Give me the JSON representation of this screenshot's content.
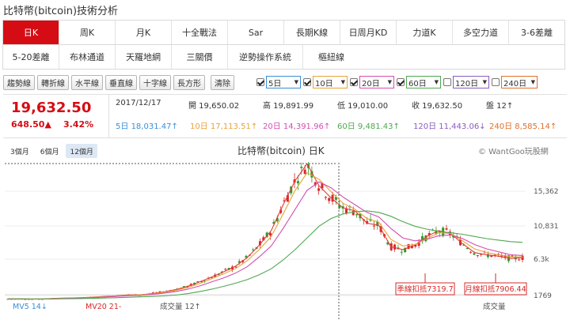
{
  "page": {
    "title": "比特幣(bitcoin)技術分析"
  },
  "tabs": {
    "row1": [
      "日K",
      "周K",
      "月K",
      "十全戰法",
      "Sar",
      "長期K線",
      "日周月KD",
      "力道K",
      "多空力道",
      "3-6差離"
    ],
    "row2": [
      "5-20差離",
      "布林通道",
      "天羅地網",
      "三關價",
      "逆勢操作系統",
      "樞紐線"
    ],
    "active": "日K"
  },
  "toolbar": {
    "buttons": [
      "趨勢線",
      "轉折線",
      "水平線",
      "垂直線",
      "十字線",
      "長方形"
    ],
    "clear": "清除",
    "ma_selects": [
      {
        "label": "5日",
        "checked": true,
        "color": "#3a8fd6"
      },
      {
        "label": "10日",
        "checked": true,
        "color": "#e8a23a"
      },
      {
        "label": "20日",
        "checked": true,
        "color": "#d44db0"
      },
      {
        "label": "60日",
        "checked": true,
        "color": "#4fa84f"
      },
      {
        "label": "120日",
        "checked": false,
        "color": "#8a5cc0"
      },
      {
        "label": "240日",
        "checked": false,
        "color": "#e0702a"
      }
    ]
  },
  "quote": {
    "price": "19,632.50",
    "change": "648.50▲",
    "pct": "3.42%",
    "date": "2017/12/17",
    "open": "開 19,650.02",
    "high": "高 19,891.99",
    "low": "低 19,010.00",
    "close": "收 19,632.50",
    "streak": "盤 12↑",
    "ma": [
      {
        "label": "5日",
        "value": "18,031.47↑",
        "color": "#3a8fd6"
      },
      {
        "label": "10日",
        "value": "17,113.51↑",
        "color": "#e8a23a"
      },
      {
        "label": "20日",
        "value": "14,391.96↑",
        "color": "#d44db0"
      },
      {
        "label": "60日",
        "value": "9,481.43↑",
        "color": "#4fa84f"
      },
      {
        "label": "120日",
        "value": "11,443.06↓",
        "color": "#8a5cc0"
      },
      {
        "label": "240日",
        "value": "8,585.14↑",
        "color": "#e0702a"
      }
    ]
  },
  "chart": {
    "range_tabs": [
      "3個月",
      "6個月",
      "12個月"
    ],
    "active_range": "12個月",
    "title": "比特幣(bitcoin) 日K",
    "credit": "© WantGoo玩股網",
    "y_ticks": [
      "15,362",
      "10,831",
      "6.3k",
      "1769"
    ],
    "annotations": [
      "季線扣抵7319.7",
      "月線扣抵7906.44"
    ],
    "volume_labels": [
      "MV5 14↓",
      "MV20 21-",
      "成交量 12↑",
      "成交量"
    ]
  },
  "chart_data": {
    "type": "candlestick",
    "title": "比特幣(bitcoin) 日K",
    "y_ticks": [
      1769,
      6300,
      10831,
      15362
    ],
    "ma_lines": [
      {
        "name": "5日",
        "color": "#e23b3b",
        "values": [
          1000,
          1000,
          980,
          1000,
          1150,
          1200,
          1280,
          1380,
          1550,
          1700,
          1850,
          1850,
          2000,
          2200,
          2500,
          2900,
          3450,
          4050,
          4700,
          5400,
          6500,
          8200,
          10200,
          13600,
          17000,
          19600,
          16200,
          14500,
          13200,
          12800,
          11200,
          10900,
          8000,
          7600,
          8200,
          9400,
          10200,
          9800,
          8400,
          7200,
          6900,
          6700,
          6400,
          6500
        ]
      },
      {
        "name": "10日",
        "color": "#e8a23a",
        "values": [
          1000,
          1000,
          985,
          990,
          1100,
          1180,
          1250,
          1350,
          1500,
          1650,
          1800,
          1860,
          1960,
          2150,
          2400,
          2750,
          3250,
          3850,
          4450,
          5100,
          6100,
          7600,
          9400,
          12400,
          15500,
          18200,
          17200,
          15300,
          13800,
          13000,
          11800,
          11300,
          9000,
          8100,
          8300,
          9100,
          9900,
          9800,
          8800,
          7700,
          7200,
          6900,
          6600,
          6600
        ]
      },
      {
        "name": "20日",
        "color": "#d44db0",
        "values": [
          1000,
          1000,
          990,
          990,
          1050,
          1130,
          1200,
          1300,
          1420,
          1560,
          1700,
          1790,
          1900,
          2050,
          2250,
          2550,
          2950,
          3450,
          3950,
          4550,
          5350,
          6600,
          8100,
          10500,
          13000,
          15500,
          16800,
          15900,
          14600,
          13600,
          12600,
          12000,
          10500,
          9200,
          8800,
          9000,
          9500,
          9600,
          9100,
          8300,
          7700,
          7300,
          6900,
          6800
        ]
      },
      {
        "name": "60日",
        "color": "#4fa84f",
        "values": [
          1000,
          1000,
          995,
          990,
          1010,
          1040,
          1080,
          1130,
          1200,
          1280,
          1370,
          1460,
          1560,
          1680,
          1820,
          2000,
          2250,
          2550,
          2900,
          3300,
          3750,
          4350,
          5100,
          6200,
          7600,
          9200,
          10800,
          11800,
          12400,
          12700,
          12800,
          12600,
          12100,
          11400,
          10800,
          10400,
          10100,
          9900,
          9700,
          9400,
          9100,
          8900,
          8700,
          8600
        ]
      }
    ],
    "markers": [
      {
        "label": "季線扣抵",
        "value": 7319.7
      },
      {
        "label": "月線扣抵",
        "value": 7906.44
      }
    ]
  }
}
